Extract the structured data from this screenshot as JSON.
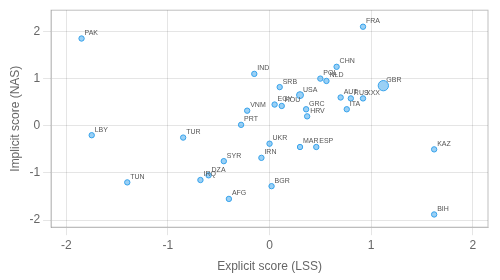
{
  "chart_data": {
    "type": "scatter",
    "xlabel": "Explicit score (LSS)",
    "ylabel": "Implicit score (NAS)",
    "labels": [
      "PAK",
      "LBY",
      "TUN",
      "TUR",
      "IRQ",
      "DZA",
      "SYR",
      "AFG",
      "IND",
      "VNM",
      "PRT",
      "IRN",
      "BGR",
      "EGY",
      "UKR",
      "ROU",
      "SRB",
      "USA",
      "GRC",
      "MAR",
      "HRV",
      "ESP",
      "POL",
      "NLD",
      "CHN",
      "AUT",
      "ITA",
      "RUS",
      "XXX",
      "FRA",
      "GBR",
      "KAZ",
      "BIH"
    ],
    "x": [
      -1.85,
      -1.75,
      -1.4,
      -0.85,
      -0.68,
      -0.6,
      -0.45,
      -0.4,
      -0.15,
      -0.22,
      -0.28,
      -0.08,
      0.02,
      0.05,
      0.0,
      0.12,
      0.1,
      0.3,
      0.36,
      0.3,
      0.37,
      0.46,
      0.5,
      0.56,
      0.66,
      0.7,
      0.76,
      0.8,
      0.92,
      0.92,
      1.12,
      1.62,
      1.62
    ],
    "values": [
      1.85,
      -0.2,
      -1.2,
      -0.25,
      -1.15,
      -1.05,
      -0.75,
      -1.55,
      1.1,
      0.32,
      0.02,
      -0.68,
      -1.28,
      0.45,
      -0.38,
      0.42,
      0.82,
      0.65,
      0.35,
      -0.45,
      0.2,
      -0.45,
      1.0,
      0.95,
      1.25,
      0.6,
      0.35,
      0.58,
      0.58,
      2.1,
      0.85,
      -0.5,
      -1.88
    ],
    "sizes": [
      15,
      15,
      15,
      15,
      15,
      15,
      15,
      15,
      15,
      15,
      15,
      15,
      15,
      15,
      15,
      15,
      15,
      25,
      15,
      15,
      15,
      15,
      15,
      15,
      15,
      15,
      15,
      15,
      15,
      15,
      55,
      15,
      15
    ],
    "xlim": [
      -2.15,
      2.15
    ],
    "ylim": [
      -2.15,
      2.45
    ],
    "xticks": [
      -2,
      -1,
      0,
      1,
      2
    ],
    "yticks": [
      -2,
      -1,
      0,
      1,
      2
    ],
    "grid": true
  }
}
